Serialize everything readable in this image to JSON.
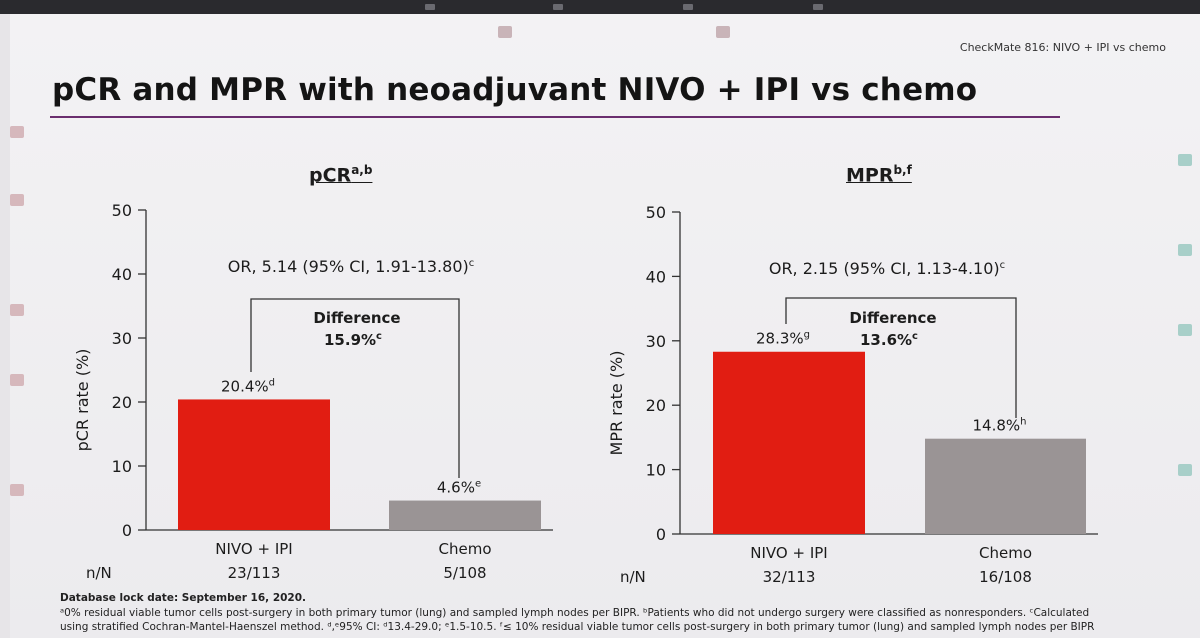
{
  "header": {
    "study_tag": "CheckMate 816: NIVO + IPI vs chemo",
    "title": "pCR and MPR with neoadjuvant NIVO + IPI vs chemo"
  },
  "colors": {
    "nivo_bar": "#e11d12",
    "chemo_bar": "#9a9495",
    "title_rule": "#6b2e6e"
  },
  "chart_data": [
    {
      "type": "bar",
      "title": "pCR",
      "title_superscript": "a,b",
      "ylabel": "pCR rate (%)",
      "ylim": [
        0,
        50
      ],
      "yticks": [
        0,
        10,
        20,
        30,
        40,
        50
      ],
      "categories": [
        "NIVO + IPI",
        "Chemo"
      ],
      "values": [
        20.4,
        4.6
      ],
      "value_labels": [
        "20.4%",
        "4.6%"
      ],
      "value_superscripts": [
        "d",
        "e"
      ],
      "n_label": "n/N",
      "n_values": [
        "23/113",
        "5/108"
      ],
      "or_text": "OR, 5.14 (95% CI, 1.91-13.80)",
      "or_superscript": "c",
      "difference_label": "Difference",
      "difference_value": "15.9%",
      "difference_superscript": "c"
    },
    {
      "type": "bar",
      "title": "MPR",
      "title_superscript": "b,f",
      "ylabel": "MPR rate (%)",
      "ylim": [
        0,
        50
      ],
      "yticks": [
        0,
        10,
        20,
        30,
        40,
        50
      ],
      "categories": [
        "NIVO + IPI",
        "Chemo"
      ],
      "values": [
        28.3,
        14.8
      ],
      "value_labels": [
        "28.3%",
        "14.8%"
      ],
      "value_superscripts": [
        "g",
        "h"
      ],
      "n_label": "n/N",
      "n_values": [
        "32/113",
        "16/108"
      ],
      "or_text": "OR, 2.15 (95% CI, 1.13-4.10)",
      "or_superscript": "c",
      "difference_label": "Difference",
      "difference_value": "13.6%",
      "difference_superscript": "c"
    }
  ],
  "footnotes": {
    "db_lock": "Database lock date: September 16, 2020.",
    "line1": "ᵃ0% residual viable tumor cells post-surgery in both primary tumor (lung) and sampled lymph nodes per BIPR. ᵇPatients who did not undergo surgery were classified as nonresponders. ᶜCalculated",
    "line2": "using stratified Cochran-Mantel-Haenszel method. ᵈ,ᵉ95% CI: ᵈ13.4-29.0; ᵉ1.5-10.5. ᶠ≤ 10% residual viable tumor cells post-surgery in both primary tumor (lung) and sampled lymph nodes per BIPR"
  }
}
